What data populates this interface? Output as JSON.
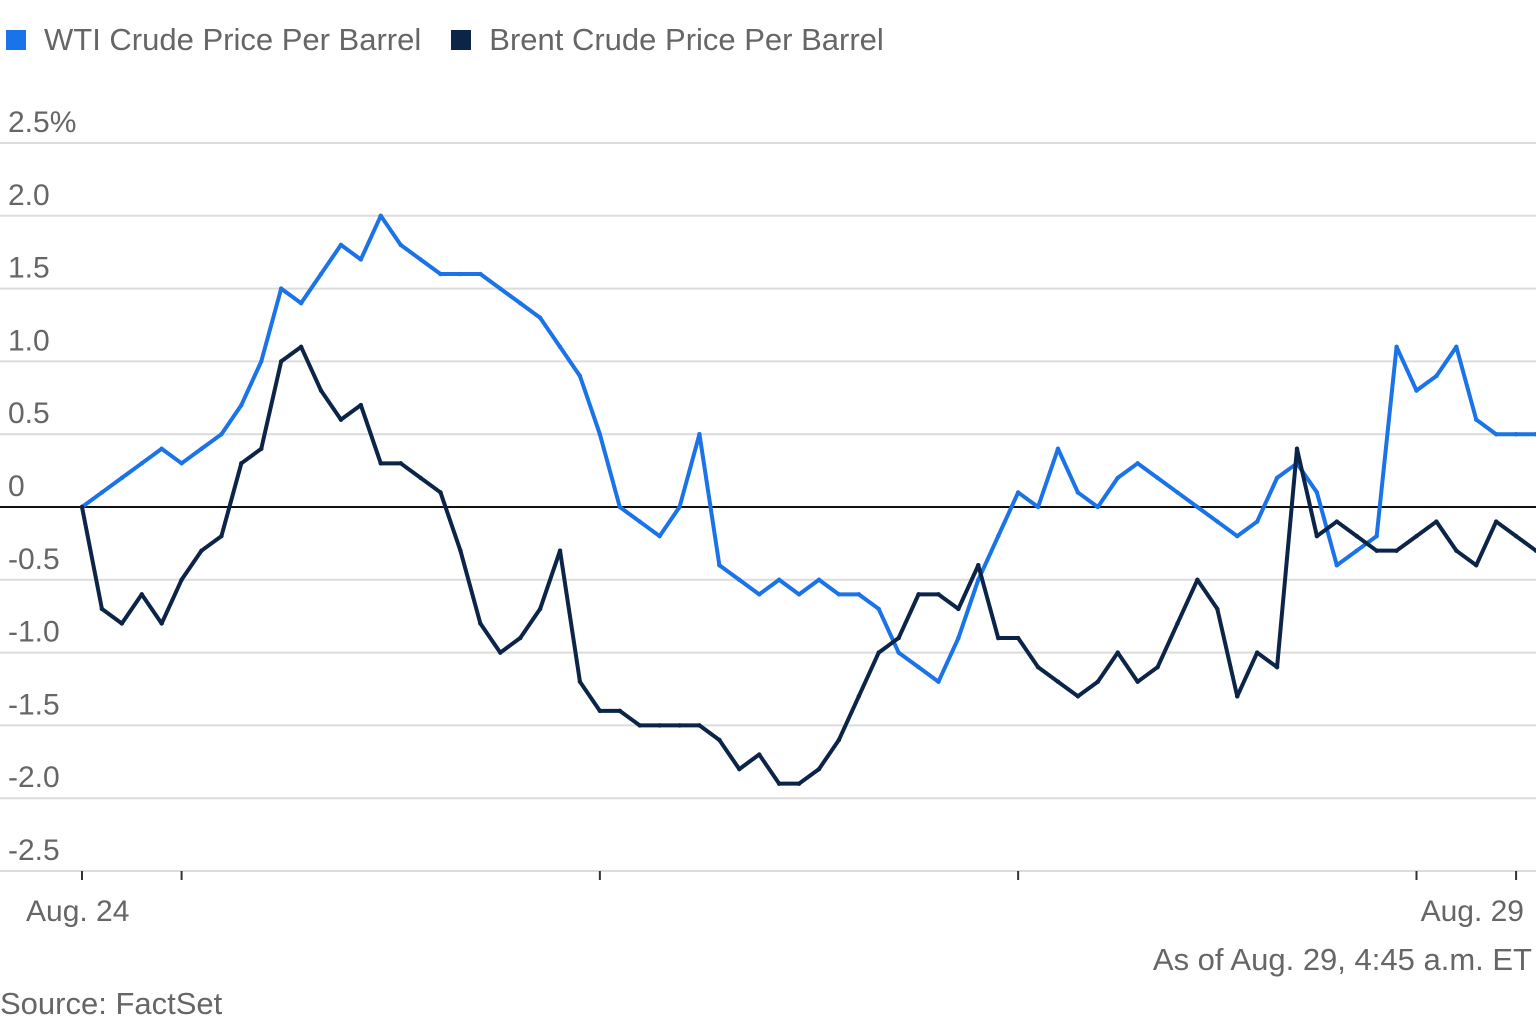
{
  "legend": [
    {
      "label": "WTI Crude Price Per Barrel",
      "color": "#1a73e8"
    },
    {
      "label": "Brent Crude Price Per Barrel",
      "color": "#0b2447"
    }
  ],
  "footer": {
    "as_of": "As of Aug. 29, 4:45 a.m. ET",
    "source": "Source: FactSet"
  },
  "chart_data": {
    "type": "line",
    "title": "",
    "xlabel": "",
    "ylabel": "",
    "unit": "%",
    "ylim": [
      -2.5,
      2.5
    ],
    "grid": true,
    "legend_position": "top-left",
    "y_ticks": [
      "2.5%",
      "2.0",
      "1.5",
      "1.0",
      "0.5",
      "0",
      "-0.5",
      "-1.0",
      "-1.5",
      "-2.0",
      "-2.5"
    ],
    "x_ticks": [
      "Aug. 24",
      "Aug. 29"
    ],
    "x": [
      "Aug. 24",
      "",
      "",
      "",
      "",
      "",
      "",
      "",
      "",
      "",
      "",
      "",
      "",
      "",
      "",
      "",
      "",
      "",
      "",
      "",
      "",
      "",
      "",
      "",
      "",
      "",
      "",
      "",
      "",
      "",
      "",
      "",
      "",
      "",
      "",
      "",
      "",
      "",
      "",
      "",
      "",
      "",
      "",
      "",
      "",
      "",
      "",
      "",
      "",
      "",
      "",
      "",
      "",
      "",
      "",
      "",
      "",
      "",
      "",
      "",
      "",
      "",
      "",
      "",
      "",
      "",
      "",
      "",
      "",
      "",
      "",
      "",
      "Aug. 29",
      ""
    ],
    "series": [
      {
        "name": "WTI Crude Price Per Barrel",
        "color": "#1a73e8",
        "values": [
          0.0,
          0.1,
          0.2,
          0.3,
          0.4,
          0.3,
          0.4,
          0.5,
          0.7,
          1.0,
          1.5,
          1.4,
          1.6,
          1.8,
          1.7,
          2.0,
          1.8,
          1.7,
          1.6,
          1.6,
          1.6,
          1.5,
          1.4,
          1.3,
          1.1,
          0.9,
          0.5,
          0.0,
          -0.1,
          -0.2,
          0.0,
          0.5,
          -0.4,
          -0.5,
          -0.6,
          -0.5,
          -0.6,
          -0.5,
          -0.6,
          -0.6,
          -0.7,
          -1.0,
          -1.1,
          -1.2,
          -0.9,
          -0.5,
          -0.2,
          0.1,
          0.0,
          0.4,
          0.1,
          0.0,
          0.2,
          0.3,
          0.2,
          0.1,
          0.0,
          -0.1,
          -0.2,
          -0.1,
          0.2,
          0.3,
          0.1,
          -0.4,
          -0.3,
          -0.2,
          1.1,
          0.8,
          0.9,
          1.1,
          0.6,
          0.5,
          0.5,
          0.5
        ]
      },
      {
        "name": "Brent Crude Price Per Barrel",
        "color": "#0b2447",
        "values": [
          0.0,
          -0.7,
          -0.8,
          -0.6,
          -0.8,
          -0.5,
          -0.3,
          -0.2,
          0.3,
          0.4,
          1.0,
          1.1,
          0.8,
          0.6,
          0.7,
          0.3,
          0.3,
          0.2,
          0.1,
          -0.3,
          -0.8,
          -1.0,
          -0.9,
          -0.7,
          -0.3,
          -1.2,
          -1.4,
          -1.4,
          -1.5,
          -1.5,
          -1.5,
          -1.5,
          -1.6,
          -1.8,
          -1.7,
          -1.9,
          -1.9,
          -1.8,
          -1.6,
          -1.3,
          -1.0,
          -0.9,
          -0.6,
          -0.6,
          -0.7,
          -0.4,
          -0.9,
          -0.9,
          -1.1,
          -1.2,
          -1.3,
          -1.2,
          -1.0,
          -1.2,
          -1.1,
          -0.8,
          -0.5,
          -0.7,
          -1.3,
          -1.0,
          -1.1,
          0.4,
          -0.2,
          -0.1,
          -0.2,
          -0.3,
          -0.3,
          -0.2,
          -0.1,
          -0.3,
          -0.4,
          -0.1,
          -0.2,
          -0.3
        ]
      }
    ]
  }
}
